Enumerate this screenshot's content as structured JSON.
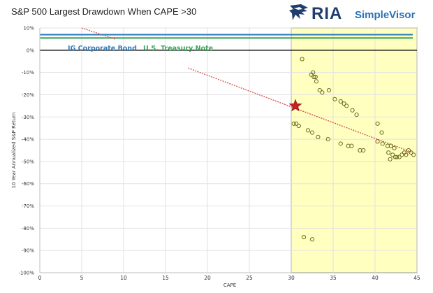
{
  "chart_data": {
    "type": "scatter",
    "title": "S&P 500 Largest Drawdown When CAPE >30",
    "xlabel": "CAPE",
    "ylabel": "10 Year Annualized S&P Return",
    "xlim": [
      0,
      45
    ],
    "ylim": [
      -100,
      10
    ],
    "x_ticks": [
      0,
      5,
      10,
      15,
      20,
      25,
      30,
      35,
      40,
      45
    ],
    "y_ticks": [
      10,
      0,
      -10,
      -20,
      -30,
      -40,
      -50,
      -60,
      -70,
      -80,
      -90,
      -100
    ],
    "x_tick_labels": [
      "0",
      "5",
      "10",
      "15",
      "20",
      "25",
      "30",
      "35",
      "40",
      "45"
    ],
    "y_tick_labels": [
      "10%",
      "0%",
      "-10%",
      "-20%",
      "-30%",
      "-40%",
      "-50%",
      "-60%",
      "-70%",
      "-80%",
      "-90%",
      "-100%"
    ],
    "grid": true,
    "highlight_region": {
      "x_from": 30,
      "x_to": 45,
      "color": "#ffffc0"
    },
    "reference_lines": [
      {
        "name": "IG Corporate Bond",
        "y": 7,
        "color": "#2f7fc1"
      },
      {
        "name": "U.S. Treasury Note",
        "y": 5.5,
        "color": "#3aa85a"
      }
    ],
    "zero_line_color": "#000000",
    "trend_line": {
      "color": "#d9534f",
      "segments": [
        [
          [
            5,
            10
          ],
          [
            9,
            5
          ]
        ],
        [
          [
            17.7,
            -8
          ],
          [
            44.5,
            -46
          ]
        ]
      ]
    },
    "marker_star": {
      "x": 30.5,
      "y": -25,
      "color": "#cc1f1f"
    },
    "series": [
      {
        "marker": "circle",
        "color": "#6b6b1e",
        "points": [
          [
            31.3,
            -4
          ],
          [
            32.4,
            -11
          ],
          [
            32.6,
            -10
          ],
          [
            32.7,
            -12
          ],
          [
            32.9,
            -12
          ],
          [
            33.0,
            -14
          ],
          [
            33.4,
            -18
          ],
          [
            33.7,
            -19
          ],
          [
            34.5,
            -18
          ],
          [
            35.2,
            -22
          ],
          [
            35.9,
            -23
          ],
          [
            36.3,
            -24
          ],
          [
            36.6,
            -25
          ],
          [
            37.3,
            -27
          ],
          [
            37.8,
            -29
          ],
          [
            40.3,
            -33
          ],
          [
            40.8,
            -37
          ],
          [
            30.3,
            -33
          ],
          [
            30.6,
            -33
          ],
          [
            30.9,
            -34
          ],
          [
            32.0,
            -36
          ],
          [
            32.5,
            -37
          ],
          [
            33.2,
            -39
          ],
          [
            34.4,
            -40
          ],
          [
            35.9,
            -42
          ],
          [
            36.8,
            -43
          ],
          [
            37.2,
            -43
          ],
          [
            38.2,
            -45
          ],
          [
            38.6,
            -45
          ],
          [
            40.3,
            -41
          ],
          [
            40.9,
            -42
          ],
          [
            41.5,
            -43
          ],
          [
            41.9,
            -43
          ],
          [
            42.3,
            -44
          ],
          [
            41.6,
            -46
          ],
          [
            42.1,
            -47
          ],
          [
            42.6,
            -48
          ],
          [
            42.9,
            -48
          ],
          [
            43.2,
            -47
          ],
          [
            43.5,
            -46
          ],
          [
            43.7,
            -47
          ],
          [
            44.0,
            -45
          ],
          [
            44.3,
            -46
          ],
          [
            44.6,
            -47
          ],
          [
            41.8,
            -49
          ],
          [
            42.4,
            -48
          ],
          [
            31.5,
            -84
          ],
          [
            32.5,
            -85
          ]
        ]
      }
    ]
  }
}
